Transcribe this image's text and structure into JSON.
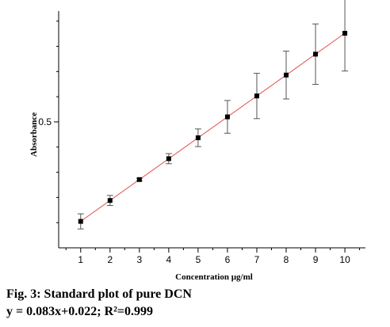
{
  "caption": {
    "title": "Fig. 3: Standard plot of pure DCN",
    "equation": "y = 0.083x+0.022; R²=0.999"
  },
  "chart_data": {
    "type": "scatter",
    "title": "",
    "xlabel": "Concentration µg/ml",
    "ylabel": "Absorbance",
    "x": [
      1,
      2,
      3,
      4,
      5,
      6,
      7,
      8,
      9,
      10
    ],
    "y": [
      0.105,
      0.188,
      0.271,
      0.354,
      0.437,
      0.52,
      0.603,
      0.686,
      0.769,
      0.852
    ],
    "errors": [
      0.03,
      0.02,
      0.005,
      0.02,
      0.035,
      0.065,
      0.09,
      0.095,
      0.12,
      0.15
    ],
    "xlim": [
      0.25,
      10.7
    ],
    "ylim": [
      0.0,
      0.94
    ],
    "xticks": [
      1,
      2,
      3,
      4,
      5,
      6,
      7,
      8,
      9,
      10
    ],
    "yticks": [
      0.5
    ],
    "fit": {
      "slope": 0.083,
      "intercept": 0.022,
      "color": "#e05050"
    },
    "marker_color": "#000000",
    "grid": false,
    "legend": "none"
  }
}
